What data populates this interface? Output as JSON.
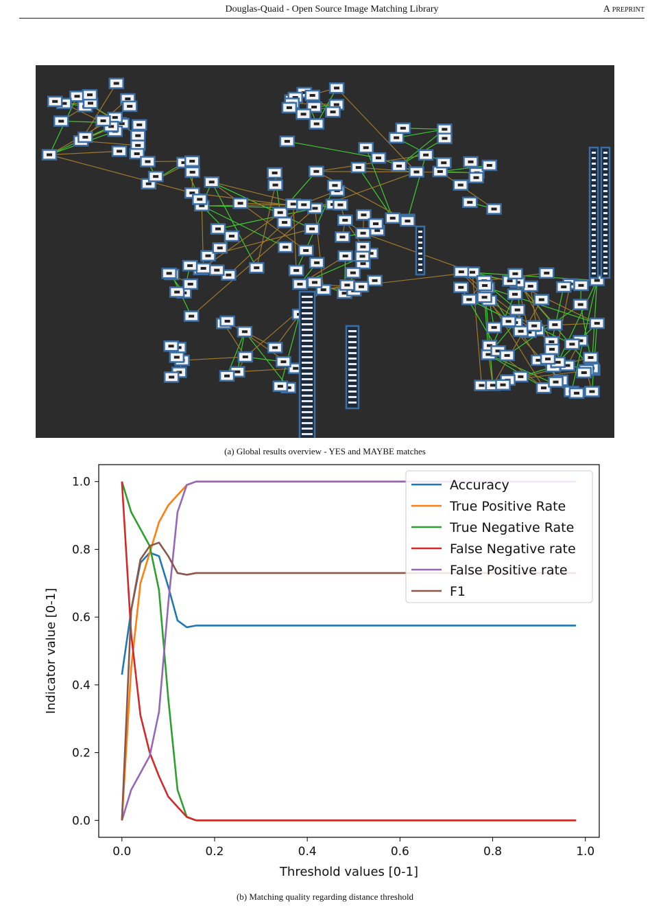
{
  "header": {
    "title": "Douglas-Quaid - Open Source Image Matching Library",
    "tag": "A preprint"
  },
  "figure_a": {
    "caption": "(a) Global results overview - YES and MAYBE matches",
    "colors": {
      "background": "#2c2c2c",
      "node_border": "#3a6ea5",
      "edge_green": "#3ccf2e",
      "edge_brown": "#a07a2a"
    }
  },
  "figure_b": {
    "caption": "(b) Matching quality regarding distance threshold"
  },
  "chart_data": {
    "type": "line",
    "xlabel": "Threshold values [0-1]",
    "ylabel": "Indicator value [0-1]",
    "xlim": [
      -0.05,
      1.03
    ],
    "ylim": [
      -0.05,
      1.05
    ],
    "xticks": [
      0.0,
      0.2,
      0.4,
      0.6,
      0.8,
      1.0
    ],
    "yticks": [
      0.0,
      0.2,
      0.4,
      0.6,
      0.8,
      1.0
    ],
    "grid": false,
    "legend": "top-right",
    "x": [
      0.0,
      0.02,
      0.04,
      0.06,
      0.08,
      0.1,
      0.12,
      0.14,
      0.16,
      0.98
    ],
    "series": [
      {
        "name": "Accuracy",
        "color": "#1f77b4",
        "values": [
          0.43,
          0.62,
          0.76,
          0.79,
          0.78,
          0.69,
          0.59,
          0.57,
          0.575,
          0.575
        ]
      },
      {
        "name": "True Positive Rate",
        "color": "#ff7f0e",
        "values": [
          0.0,
          0.45,
          0.7,
          0.79,
          0.88,
          0.93,
          0.96,
          0.99,
          1.0,
          1.0
        ]
      },
      {
        "name": "True Negative Rate",
        "color": "#2ca02c",
        "values": [
          1.0,
          0.91,
          0.86,
          0.81,
          0.68,
          0.36,
          0.09,
          0.01,
          0.0,
          0.0
        ]
      },
      {
        "name": "False Negative rate",
        "color": "#d62728",
        "values": [
          1.0,
          0.55,
          0.31,
          0.2,
          0.13,
          0.07,
          0.04,
          0.01,
          0.0,
          0.0
        ]
      },
      {
        "name": "False Positive rate",
        "color": "#9467bd",
        "values": [
          0.0,
          0.09,
          0.14,
          0.19,
          0.32,
          0.64,
          0.91,
          0.99,
          1.0,
          1.0
        ]
      },
      {
        "name": "F1",
        "color": "#8c564b",
        "values": [
          0.0,
          0.62,
          0.77,
          0.81,
          0.82,
          0.78,
          0.73,
          0.725,
          0.73,
          0.73
        ]
      }
    ]
  }
}
